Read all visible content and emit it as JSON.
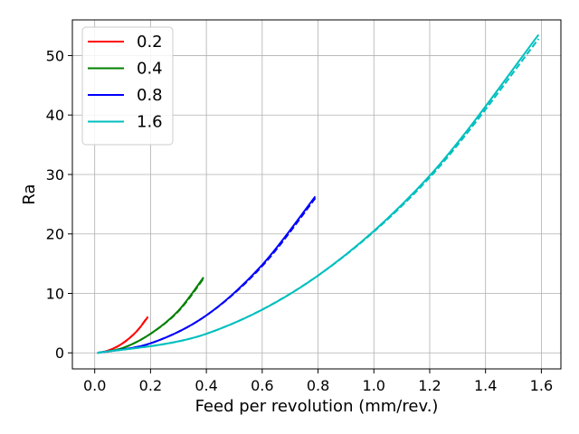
{
  "chart_data": {
    "type": "line",
    "title": "",
    "xlabel": "Feed per revolution (mm/rev.)",
    "ylabel": "Ra",
    "xlim": [
      -0.08,
      1.67
    ],
    "ylim": [
      -2.7,
      56.0
    ],
    "xticks": [
      0.0,
      0.2,
      0.4,
      0.6,
      0.8,
      1.0,
      1.2,
      1.4,
      1.6
    ],
    "xtick_labels": [
      "0.0",
      "0.2",
      "0.4",
      "0.6",
      "0.8",
      "1.0",
      "1.2",
      "1.4",
      "1.6"
    ],
    "yticks": [
      0,
      10,
      20,
      30,
      40,
      50
    ],
    "ytick_labels": [
      "0",
      "10",
      "20",
      "30",
      "40",
      "50"
    ],
    "grid": true,
    "legend_position": "upper-left",
    "series": [
      {
        "name": "0.2",
        "color": "#ff0000",
        "x": [
          0.01,
          0.05,
          0.1,
          0.15,
          0.19
        ],
        "y": [
          0.0,
          0.4,
          1.6,
          3.6,
          6.0
        ],
        "dashed_y": [
          0.0,
          0.4,
          1.6,
          3.6,
          6.1
        ]
      },
      {
        "name": "0.4",
        "color": "#008000",
        "x": [
          0.01,
          0.1,
          0.2,
          0.3,
          0.39
        ],
        "y": [
          0.0,
          0.8,
          3.2,
          7.1,
          12.7
        ],
        "dashed_y": [
          0.0,
          0.8,
          3.2,
          7.0,
          12.5
        ]
      },
      {
        "name": "0.8",
        "color": "#0000ff",
        "x": [
          0.01,
          0.2,
          0.4,
          0.6,
          0.79
        ],
        "y": [
          0.0,
          1.6,
          6.3,
          14.8,
          26.3
        ],
        "dashed_y": [
          0.0,
          1.6,
          6.3,
          14.6,
          26.0
        ]
      },
      {
        "name": "1.6",
        "color": "#00bfbf",
        "x": [
          0.01,
          0.4,
          0.8,
          1.2,
          1.59
        ],
        "y": [
          0.0,
          3.2,
          13.0,
          29.8,
          53.5
        ],
        "dashed_y": [
          0.0,
          3.2,
          13.0,
          29.5,
          52.8
        ]
      }
    ]
  }
}
